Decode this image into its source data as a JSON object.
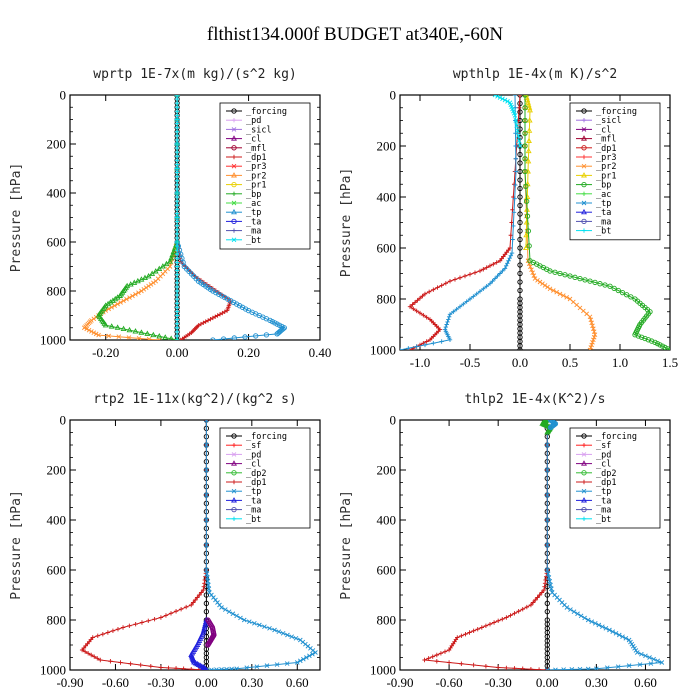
{
  "figure_title": "flthist134.000f  BUDGET at340E,-60N",
  "colors": {
    "_forcing": "#000000",
    "_pd": "#d9a0f0",
    "_sicl": "#a070e0",
    "_cl": "#800080",
    "_mfl": "#a00030",
    "_dp1": "#cc1a1a",
    "_pr3": "#ff3030",
    "_pr2": "#ff9030",
    "_pr1": "#e8d000",
    "_bp": "#22aa22",
    "_ac": "#44dd44",
    "_tp": "#2090d0",
    "_ta": "#2020dd",
    "_ma": "#5050b0",
    "_bt": "#00e0f0",
    "_sf": "#ff2020",
    "_dp2": "#33bb33"
  },
  "chart_data": [
    {
      "type": "line",
      "title": "wprtp  1E-7x(m kg)/(s^2 kg)",
      "xlabel": "",
      "ylabel": "Pressure [hPa]",
      "xlim": [
        -0.3,
        0.4
      ],
      "ylim": [
        1000,
        0
      ],
      "xticks": [
        -0.2,
        0.0,
        0.2,
        0.4
      ],
      "xtick_labels": [
        "-0.20",
        "0.00",
        "0.20",
        "0.40"
      ],
      "yticks": [
        0,
        200,
        400,
        600,
        800,
        1000
      ],
      "ytick_labels": [
        "0",
        "200",
        "400",
        "600",
        "800",
        "1000"
      ],
      "legend_position": "top-right",
      "legend": [
        "_forcing",
        "_pd",
        "_sicl",
        "_cl",
        "_mfl",
        "_dp1",
        "_pr3",
        "_pr2",
        "_pr1",
        "_bp",
        "_ac",
        "_tp",
        "_ta",
        "_ma",
        "_bt"
      ],
      "series": [
        {
          "name": "_forcing",
          "x": [
            0,
            0,
            0,
            0,
            0,
            0,
            0,
            0,
            0,
            0,
            0
          ],
          "y": [
            0,
            100,
            200,
            300,
            400,
            500,
            600,
            700,
            800,
            900,
            1000
          ]
        },
        {
          "name": "_dp1",
          "x": [
            0,
            0,
            0.01,
            0.05,
            0.1,
            0.15,
            0.14,
            0.1,
            0.06,
            0.04,
            0.01
          ],
          "y": [
            0,
            600,
            680,
            740,
            790,
            840,
            880,
            910,
            940,
            970,
            1000
          ]
        },
        {
          "name": "_pr2",
          "x": [
            0,
            0,
            -0.02,
            -0.06,
            -0.1,
            -0.15,
            -0.2,
            -0.24,
            -0.26,
            -0.22,
            -0.05
          ],
          "y": [
            0,
            600,
            700,
            760,
            800,
            840,
            880,
            920,
            950,
            980,
            1000
          ]
        },
        {
          "name": "_bp",
          "x": [
            0,
            0,
            -0.02,
            -0.08,
            -0.14,
            -0.16,
            -0.2,
            -0.22,
            -0.2,
            -0.1,
            0
          ],
          "y": [
            0,
            600,
            680,
            740,
            780,
            820,
            860,
            900,
            940,
            970,
            1000
          ]
        },
        {
          "name": "_tp",
          "x": [
            0,
            0,
            0.02,
            0.06,
            0.1,
            0.15,
            0.2,
            0.26,
            0.3,
            0.28,
            0.1
          ],
          "y": [
            0,
            600,
            700,
            760,
            800,
            840,
            880,
            920,
            950,
            975,
            1000
          ]
        },
        {
          "name": "_bt",
          "x": [
            0,
            0,
            0,
            0,
            0,
            0,
            0,
            0,
            0,
            0,
            0
          ],
          "y": [
            0,
            100,
            200,
            300,
            400,
            500,
            600,
            700,
            800,
            900,
            1000
          ]
        }
      ]
    },
    {
      "type": "line",
      "title": "wpthlp  1E-4x(m K)/s^2",
      "xlabel": "",
      "ylabel": "Pressure [hPa]",
      "xlim": [
        -1.2,
        1.5
      ],
      "ylim": [
        1000,
        0
      ],
      "xticks": [
        -1.0,
        -0.5,
        0.0,
        0.5,
        1.0,
        1.5
      ],
      "xtick_labels": [
        "-1.0",
        "-0.5",
        "0.0",
        "0.5",
        "1.0",
        "1.5"
      ],
      "yticks": [
        0,
        200,
        400,
        600,
        800,
        1000
      ],
      "ytick_labels": [
        "0",
        "200",
        "400",
        "600",
        "800",
        "1000"
      ],
      "legend_position": "top-right",
      "legend": [
        "_forcing",
        "_sicl",
        "_cl",
        "_mfl",
        "_dp1",
        "_pr3",
        "_pr2",
        "_pr1",
        "_bp",
        "_ac",
        "_tp",
        "_ta",
        "_ma",
        "_bt"
      ],
      "series": [
        {
          "name": "_forcing",
          "x": [
            0,
            0,
            0,
            0,
            0,
            0,
            0
          ],
          "y": [
            0,
            200,
            400,
            600,
            800,
            900,
            1000
          ]
        },
        {
          "name": "_dp1",
          "x": [
            0,
            -0.05,
            -0.1,
            -0.2,
            -0.4,
            -0.7,
            -0.95,
            -1.1,
            -0.9,
            -0.8,
            -0.9,
            -1.1
          ],
          "y": [
            0,
            300,
            600,
            650,
            690,
            730,
            780,
            830,
            880,
            920,
            960,
            1000
          ]
        },
        {
          "name": "_pr2",
          "x": [
            0.05,
            0.05,
            0.08,
            0.15,
            0.3,
            0.5,
            0.7,
            0.75,
            0.7
          ],
          "y": [
            0,
            300,
            650,
            720,
            760,
            800,
            870,
            940,
            1000
          ]
        },
        {
          "name": "_pr1",
          "x": [
            0.06,
            0.1,
            0.08,
            0.06
          ],
          "y": [
            0,
            60,
            300,
            600
          ]
        },
        {
          "name": "_bp",
          "x": [
            0.05,
            0.05,
            0.1,
            0.3,
            0.6,
            0.9,
            1.15,
            1.3,
            1.2,
            1.15,
            1.35,
            1.5
          ],
          "y": [
            0,
            300,
            650,
            690,
            720,
            750,
            800,
            850,
            900,
            940,
            970,
            1000
          ]
        },
        {
          "name": "_tp",
          "x": [
            -0.05,
            -0.04,
            -0.08,
            -0.15,
            -0.3,
            -0.5,
            -0.7,
            -0.75,
            -0.7,
            -1.2
          ],
          "y": [
            0,
            300,
            620,
            680,
            740,
            800,
            860,
            920,
            960,
            1000
          ]
        },
        {
          "name": "_bt",
          "x": [
            -0.25,
            -0.1,
            -0.05,
            0
          ],
          "y": [
            0,
            30,
            80,
            200
          ]
        }
      ]
    },
    {
      "type": "line",
      "title": "rtp2  1E-11x(kg^2)/(kg^2 s)",
      "xlabel": "",
      "ylabel": "Pressure [hPa]",
      "xlim": [
        -0.9,
        0.75
      ],
      "ylim": [
        1000,
        0
      ],
      "xticks": [
        -0.9,
        -0.6,
        -0.3,
        0.0,
        0.3,
        0.6
      ],
      "xtick_labels": [
        "-0.90",
        "-0.60",
        "-0.30",
        "0.00",
        "0.30",
        "0.60"
      ],
      "yticks": [
        0,
        200,
        400,
        600,
        800,
        1000
      ],
      "ytick_labels": [
        "0",
        "200",
        "400",
        "600",
        "800",
        "1000"
      ],
      "legend_position": "top-right",
      "legend": [
        "_forcing",
        "_sf",
        "_pd",
        "_cl",
        "_dp2",
        "_dp1",
        "_tp",
        "_ta",
        "_ma",
        "_bt"
      ],
      "series": [
        {
          "name": "_forcing",
          "x": [
            0,
            0,
            0,
            0,
            0,
            0,
            0
          ],
          "y": [
            0,
            200,
            400,
            600,
            800,
            900,
            1000
          ]
        },
        {
          "name": "_dp1",
          "x": [
            0,
            0,
            -0.02,
            -0.1,
            -0.3,
            -0.55,
            -0.75,
            -0.82,
            -0.7,
            -0.3,
            0
          ],
          "y": [
            0,
            600,
            680,
            740,
            790,
            830,
            870,
            920,
            960,
            990,
            1000
          ]
        },
        {
          "name": "_tp",
          "x": [
            0,
            0,
            0.02,
            0.1,
            0.25,
            0.45,
            0.62,
            0.72,
            0.6,
            0.2,
            0
          ],
          "y": [
            0,
            600,
            690,
            750,
            800,
            840,
            880,
            930,
            970,
            995,
            1000
          ]
        },
        {
          "name": "_ta",
          "x": [
            0,
            -0.02,
            -0.06,
            -0.1,
            -0.08,
            -0.02,
            0
          ],
          "y": [
            800,
            850,
            900,
            940,
            970,
            990,
            1000
          ]
        },
        {
          "name": "_cl",
          "x": [
            0.01,
            0.04,
            0.05,
            0.03,
            0.01
          ],
          "y": [
            800,
            830,
            860,
            880,
            900
          ]
        }
      ]
    },
    {
      "type": "line",
      "title": "thlp2  1E-4x(K^2)/s",
      "xlabel": "",
      "ylabel": "Pressure [hPa]",
      "xlim": [
        -0.9,
        0.75
      ],
      "ylim": [
        1000,
        0
      ],
      "xticks": [
        -0.9,
        -0.6,
        -0.3,
        0.0,
        0.3,
        0.6
      ],
      "xtick_labels": [
        "-0.90",
        "-0.60",
        "-0.30",
        "0.00",
        "0.30",
        "0.60"
      ],
      "yticks": [
        0,
        200,
        400,
        600,
        800,
        1000
      ],
      "ytick_labels": [
        "0",
        "200",
        "400",
        "600",
        "800",
        "1000"
      ],
      "legend_position": "top-right",
      "legend": [
        "_forcing",
        "_sf",
        "_pd",
        "_cl",
        "_dp2",
        "_dp1",
        "_tp",
        "_ta",
        "_ma",
        "_bt"
      ],
      "series": [
        {
          "name": "_forcing",
          "x": [
            0,
            0,
            0,
            0,
            0,
            0,
            0
          ],
          "y": [
            0,
            200,
            400,
            600,
            800,
            900,
            1000
          ]
        },
        {
          "name": "_dp1",
          "x": [
            0,
            0,
            -0.02,
            -0.1,
            -0.25,
            -0.4,
            -0.55,
            -0.6,
            -0.75,
            -0.3,
            0
          ],
          "y": [
            0,
            600,
            680,
            740,
            790,
            830,
            870,
            920,
            960,
            990,
            1000
          ]
        },
        {
          "name": "_tp",
          "x": [
            0,
            0,
            0.03,
            0.12,
            0.25,
            0.38,
            0.5,
            0.55,
            0.7,
            0.3,
            0
          ],
          "y": [
            0,
            600,
            690,
            750,
            800,
            840,
            880,
            930,
            970,
            995,
            1000
          ]
        },
        {
          "name": "_bp",
          "x": [
            0,
            -0.03,
            0.02,
            0
          ],
          "y": [
            0,
            15,
            30,
            50
          ]
        },
        {
          "name": "_tp",
          "x": [
            0.02,
            0.05,
            0.02
          ],
          "y": [
            0,
            15,
            30
          ]
        }
      ]
    }
  ]
}
